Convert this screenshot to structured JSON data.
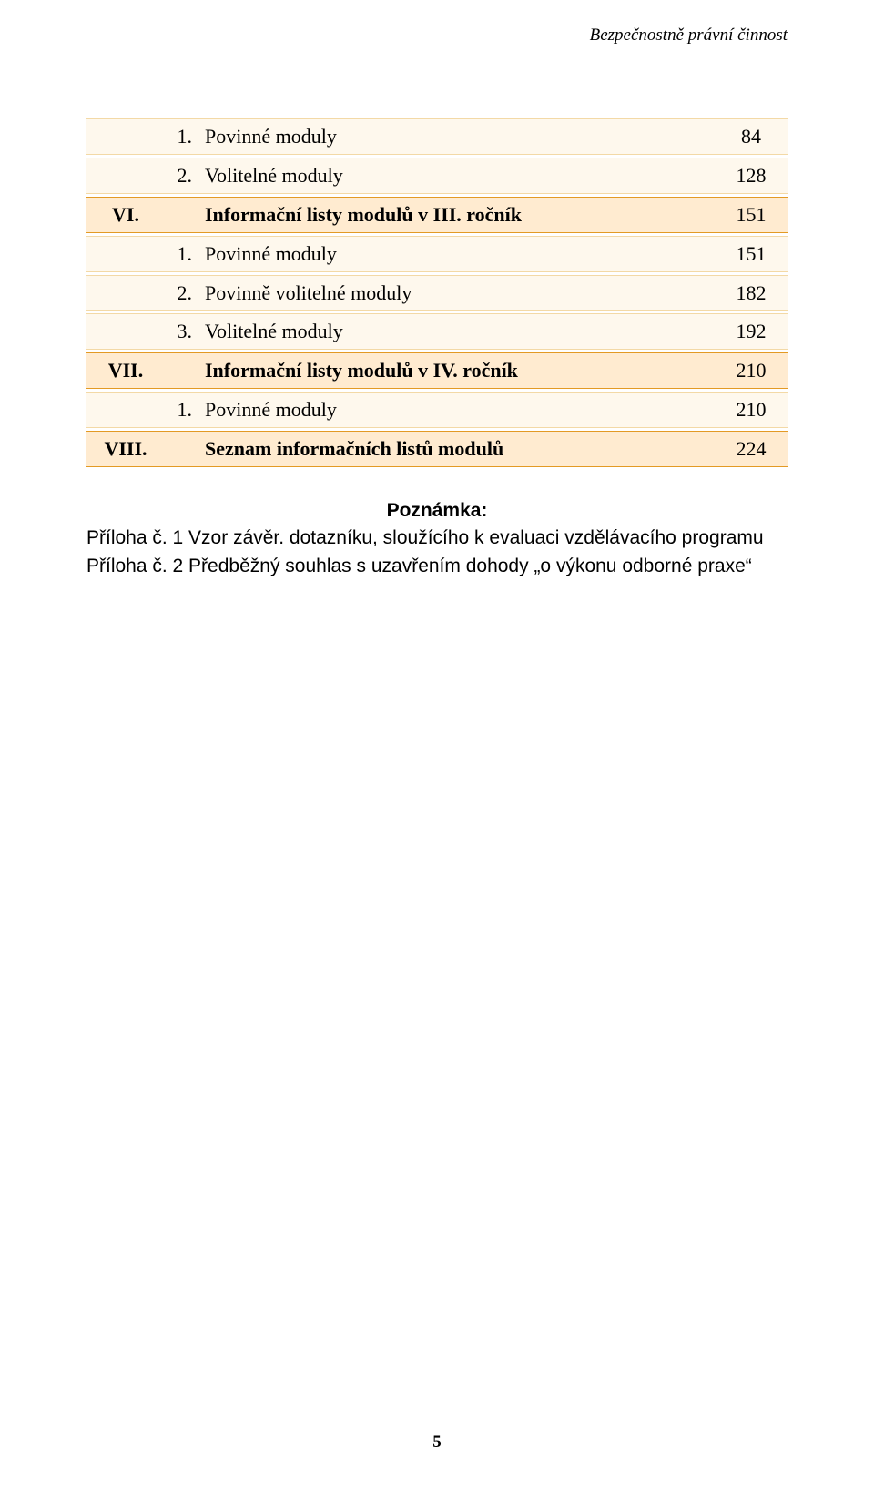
{
  "colors": {
    "row_top_bg": "#ffebd0",
    "row_top_border": "#e39a24",
    "row_sub_bg": "#fef8ed",
    "row_sub_border": "#f3d9a6",
    "text": "#000000",
    "page_bg": "#ffffff"
  },
  "running_header": "Bezpečnostně právní činnost",
  "toc": [
    {
      "level": "sub",
      "roman": "",
      "sub": "1.",
      "title": "Povinné moduly",
      "page": "84"
    },
    {
      "level": "sub",
      "roman": "",
      "sub": "2.",
      "title": "Volitelné moduly",
      "page": "128"
    },
    {
      "level": "main",
      "roman": "VI.",
      "sub": "",
      "title": "Informační listy modulů v III. ročník",
      "page": "151"
    },
    {
      "level": "sub",
      "roman": "",
      "sub": "1.",
      "title": "Povinné moduly",
      "page": "151"
    },
    {
      "level": "sub",
      "roman": "",
      "sub": "2.",
      "title": "Povinně volitelné moduly",
      "page": "182"
    },
    {
      "level": "sub",
      "roman": "",
      "sub": "3.",
      "title": "Volitelné moduly",
      "page": "192"
    },
    {
      "level": "main",
      "roman": "VII.",
      "sub": "",
      "title": "Informační listy modulů v IV. ročník",
      "page": "210"
    },
    {
      "level": "sub",
      "roman": "",
      "sub": "1.",
      "title": "Povinné moduly",
      "page": "210"
    },
    {
      "level": "main",
      "roman": "VIII.",
      "sub": "",
      "title": "Seznam informačních listů modulů",
      "page": "224"
    }
  ],
  "note": {
    "heading": "Poznámka:",
    "line1": "Příloha č. 1 Vzor závěr. dotazníku, sloužícího k evaluaci vzdělávacího programu",
    "line2": "Příloha č. 2  Předběžný souhlas s uzavřením dohody „o výkonu odborné praxe“"
  },
  "page_number": "5"
}
